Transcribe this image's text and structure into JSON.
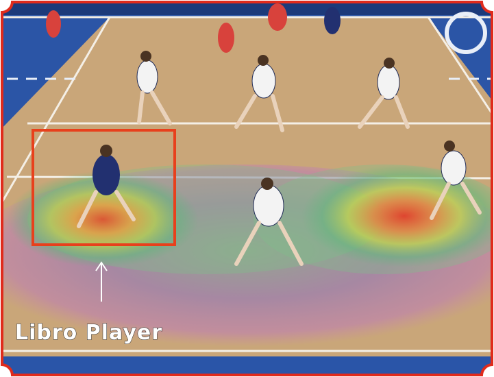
{
  "annotation": {
    "label": "Libro Player"
  }
}
